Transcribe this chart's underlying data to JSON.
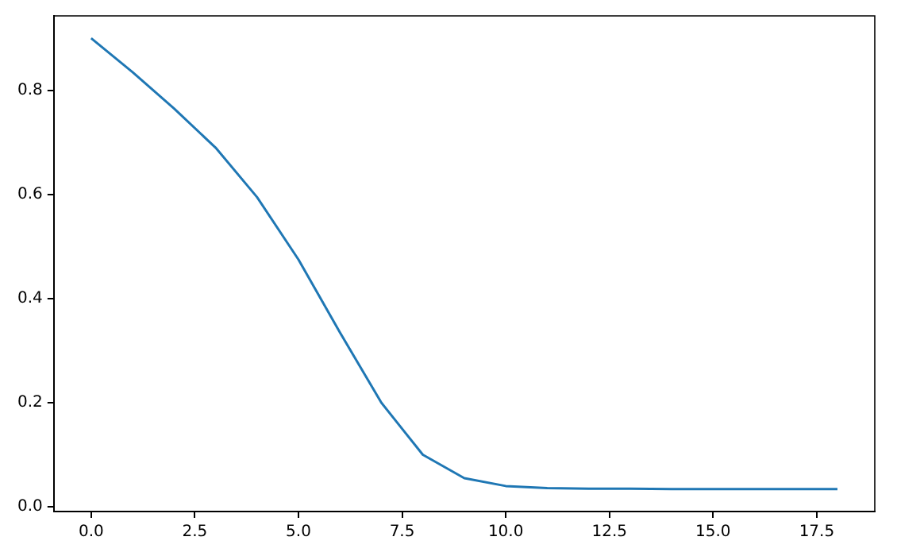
{
  "chart_data": {
    "type": "line",
    "x": [
      0,
      1,
      2,
      3,
      4,
      5,
      6,
      7,
      8,
      9,
      10,
      11,
      12,
      13,
      14,
      15,
      16,
      17,
      18
    ],
    "series": [
      {
        "color": "#1f77b4",
        "values": [
          0.9,
          0.835,
          0.765,
          0.69,
          0.595,
          0.475,
          0.335,
          0.2,
          0.1,
          0.055,
          0.04,
          0.036,
          0.035,
          0.035,
          0.034,
          0.034,
          0.034,
          0.034,
          0.034
        ]
      }
    ],
    "xlim": [
      -0.9,
      18.9
    ],
    "ylim": [
      -0.009,
      0.943
    ],
    "xticks": [
      {
        "value": 0,
        "label": "0.0"
      },
      {
        "value": 2.5,
        "label": "2.5"
      },
      {
        "value": 5,
        "label": "5.0"
      },
      {
        "value": 7.5,
        "label": "7.5"
      },
      {
        "value": 10,
        "label": "10.0"
      },
      {
        "value": 12.5,
        "label": "12.5"
      },
      {
        "value": 15,
        "label": "15.0"
      },
      {
        "value": 17.5,
        "label": "17.5"
      }
    ],
    "yticks": [
      {
        "value": 0,
        "label": "0.0"
      },
      {
        "value": 0.2,
        "label": "0.2"
      },
      {
        "value": 0.4,
        "label": "0.4"
      },
      {
        "value": 0.6,
        "label": "0.6"
      },
      {
        "value": 0.8,
        "label": "0.8"
      }
    ],
    "grid": false,
    "legend": false,
    "marker": "none",
    "line_style": "solid"
  }
}
